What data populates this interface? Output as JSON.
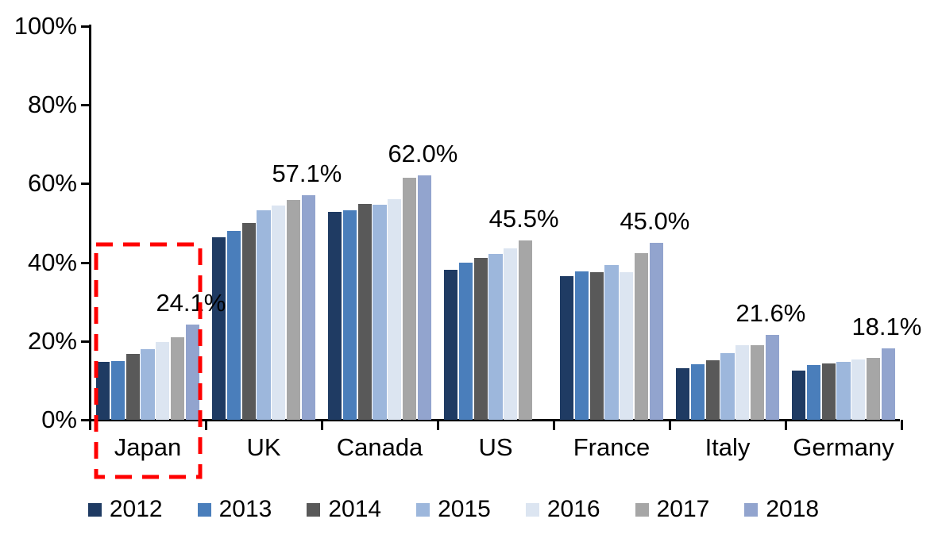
{
  "chart_data": {
    "type": "bar",
    "title": "",
    "xlabel": "",
    "ylabel": "",
    "ylim": [
      0,
      100
    ],
    "yticks": [
      "0%",
      "20%",
      "40%",
      "60%",
      "80%",
      "100%"
    ],
    "grid": false,
    "legend_position": "bottom",
    "categories": [
      "Japan",
      "UK",
      "Canada",
      "US",
      "France",
      "Italy",
      "Germany"
    ],
    "series": [
      {
        "name": "2012",
        "color": "#1F3B63",
        "values": [
          14.8,
          46.3,
          52.9,
          38.1,
          36.5,
          13.2,
          12.6
        ]
      },
      {
        "name": "2013",
        "color": "#4A7EBB",
        "values": [
          15.0,
          47.9,
          53.3,
          40.0,
          37.7,
          14.2,
          14.0
        ]
      },
      {
        "name": "2014",
        "color": "#595959",
        "values": [
          16.7,
          50.0,
          54.8,
          41.1,
          37.6,
          15.2,
          14.4
        ]
      },
      {
        "name": "2015",
        "color": "#9DB7DC",
        "values": [
          18.0,
          53.3,
          54.6,
          42.2,
          39.3,
          16.9,
          14.7
        ]
      },
      {
        "name": "2016",
        "color": "#DCE5F1",
        "values": [
          19.8,
          54.5,
          56.0,
          43.5,
          37.4,
          18.9,
          15.3
        ]
      },
      {
        "name": "2017",
        "color": "#A6A6A6",
        "values": [
          21.0,
          55.8,
          61.5,
          45.5,
          42.3,
          19.0,
          15.8
        ]
      },
      {
        "name": "2018",
        "color": "#92A4CE",
        "values": [
          24.1,
          57.1,
          62.0,
          null,
          45.0,
          21.6,
          18.1
        ]
      }
    ],
    "peak_labels": [
      "24.1%",
      "57.1%",
      "62.0%",
      "45.5%",
      "45.0%",
      "21.6%",
      "18.1%"
    ],
    "annotation": {
      "type": "dashed-box",
      "around_category": "Japan",
      "color": "#FF0000"
    }
  }
}
